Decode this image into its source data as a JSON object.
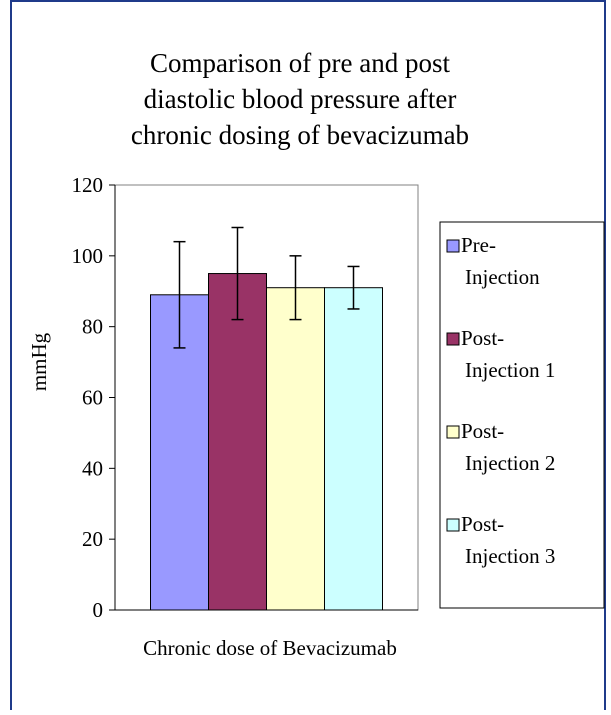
{
  "chart_data": {
    "type": "bar",
    "title": [
      "Comparison of pre and post",
      "diastolic blood pressure after",
      "chronic dosing of bevacizumab"
    ],
    "x_label": "Chronic dose of Bevacizumab",
    "y_label": "mmHg",
    "categories": [
      null
    ],
    "series": [
      {
        "name": "Pre-Injection",
        "color": "#9999ff",
        "values": [
          89
        ],
        "errors": [
          15
        ]
      },
      {
        "name": "Post-Injection 1",
        "color": "#993366",
        "values": [
          95
        ],
        "errors": [
          13
        ]
      },
      {
        "name": "Post-Injection 2",
        "color": "#ffffcc",
        "values": [
          91
        ],
        "errors": [
          9
        ]
      },
      {
        "name": "Post-Injection 3",
        "color": "#ccffff",
        "values": [
          91
        ],
        "errors": [
          6
        ]
      }
    ],
    "ylim": [
      0,
      120
    ],
    "yticks": [
      0,
      20,
      40,
      60,
      80,
      100,
      120
    ],
    "grid": false,
    "legend": "right"
  }
}
